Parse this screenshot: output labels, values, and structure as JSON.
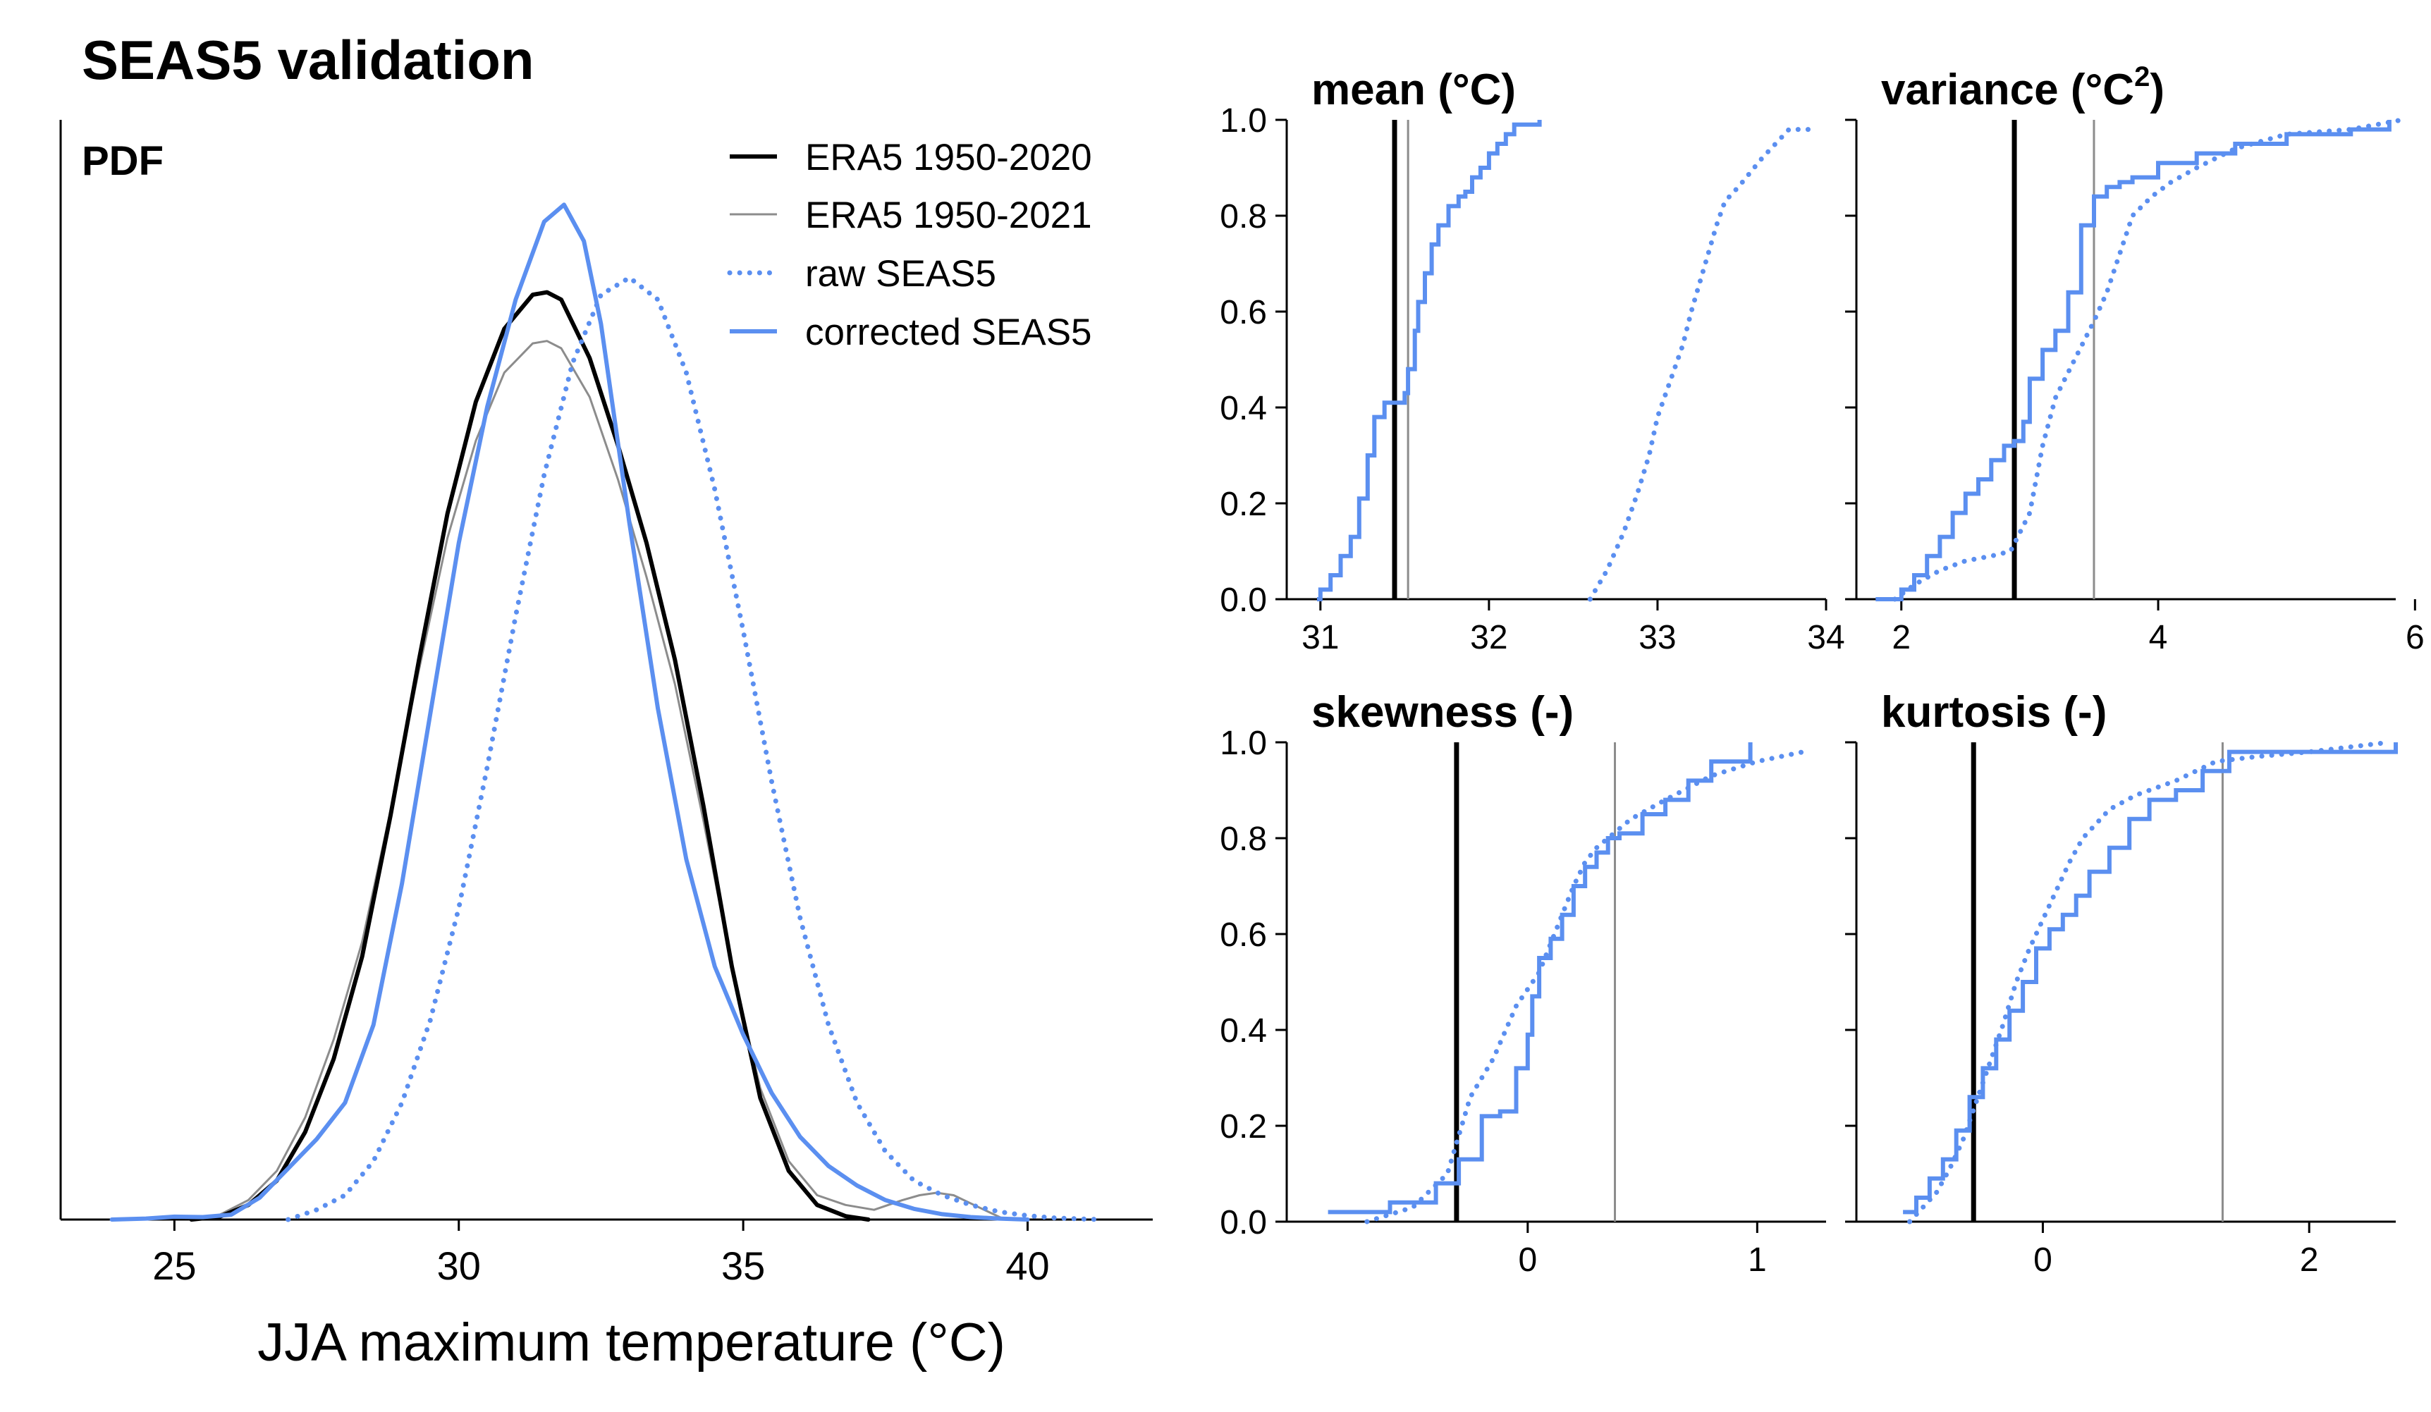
{
  "figure_title": "SEAS5 validation",
  "colors": {
    "era5": "#000000",
    "era5_long": "#8c8c8c",
    "seas5": "#5b8ff0"
  },
  "chart_data": [
    {
      "id": "pdf",
      "type": "line",
      "panel_label": "PDF",
      "xlabel": "JJA maximum temperature (°C)",
      "ylabel": "",
      "xlim": [
        23,
        42.2
      ],
      "ylim": [
        0,
        0.21
      ],
      "xticks": [
        25,
        30,
        35,
        40
      ],
      "xtick_labels": [
        "25",
        "30",
        "35",
        "40"
      ],
      "legend": {
        "position": "top-right",
        "entries": [
          {
            "label": "ERA5 1950-2020",
            "series": "era5_2020"
          },
          {
            "label": "ERA5 1950-2021",
            "series": "era5_2021"
          },
          {
            "label": "raw SEAS5",
            "series": "raw_seas5"
          },
          {
            "label": "corrected SEAS5",
            "series": "corrected_seas5"
          }
        ]
      },
      "series": [
        {
          "key": "era5_2020",
          "name": "ERA5 1950-2020",
          "color": "#000000",
          "style": "solid",
          "width": 6,
          "x": [
            25.3,
            25.8,
            26.3,
            26.8,
            27.3,
            27.8,
            28.3,
            28.8,
            29.3,
            29.8,
            30.3,
            30.8,
            31.3,
            31.55,
            31.8,
            32.3,
            32.8,
            33.3,
            33.8,
            34.3,
            34.8,
            35.3,
            35.8,
            36.3,
            36.8,
            37.2
          ],
          "y": [
            0,
            0.0006,
            0.003,
            0.008,
            0.018,
            0.033,
            0.054,
            0.083,
            0.115,
            0.145,
            0.168,
            0.183,
            0.19,
            0.1905,
            0.189,
            0.177,
            0.159,
            0.139,
            0.115,
            0.085,
            0.052,
            0.025,
            0.01,
            0.003,
            0.0007,
            0
          ]
        },
        {
          "key": "era5_2021",
          "name": "ERA5 1950-2021",
          "color": "#8c8c8c",
          "style": "solid",
          "width": 3,
          "x": [
            25.3,
            25.8,
            26.3,
            26.8,
            27.3,
            27.8,
            28.3,
            28.8,
            29.3,
            29.8,
            30.3,
            30.8,
            31.3,
            31.55,
            31.8,
            32.3,
            32.8,
            33.3,
            33.8,
            34.3,
            34.8,
            35.3,
            35.8,
            36.3,
            36.8,
            37.3,
            37.8,
            38.1,
            38.4,
            38.7,
            39.2,
            39.6
          ],
          "y": [
            0,
            0.001,
            0.004,
            0.01,
            0.021,
            0.037,
            0.057,
            0.084,
            0.113,
            0.14,
            0.16,
            0.174,
            0.18,
            0.1805,
            0.179,
            0.169,
            0.152,
            0.132,
            0.11,
            0.082,
            0.052,
            0.027,
            0.012,
            0.005,
            0.003,
            0.002,
            0.004,
            0.005,
            0.0055,
            0.005,
            0.0022,
            0
          ]
        },
        {
          "key": "raw_seas5",
          "name": "raw SEAS5",
          "color": "#5b8ff0",
          "style": "dotted",
          "width": 6,
          "x": [
            27.0,
            27.5,
            28.0,
            28.5,
            29.0,
            29.5,
            30.0,
            30.5,
            31.0,
            31.5,
            32.0,
            32.5,
            33.0,
            33.5,
            34.0,
            34.5,
            35.0,
            35.5,
            36.0,
            36.5,
            37.0,
            37.5,
            38.0,
            38.5,
            39.0,
            39.5,
            40.0,
            40.5,
            41.0,
            41.3
          ],
          "y": [
            0,
            0.002,
            0.005,
            0.012,
            0.024,
            0.041,
            0.064,
            0.093,
            0.124,
            0.153,
            0.176,
            0.19,
            0.1935,
            0.189,
            0.174,
            0.15,
            0.121,
            0.09,
            0.062,
            0.04,
            0.024,
            0.014,
            0.008,
            0.005,
            0.003,
            0.0016,
            0.0008,
            0.0003,
            0.0001,
            0
          ]
        },
        {
          "key": "corrected_seas5",
          "name": "corrected SEAS5",
          "color": "#5b8ff0",
          "style": "solid",
          "width": 6,
          "x": [
            23.9,
            24.5,
            25.0,
            25.5,
            26.0,
            26.5,
            27.0,
            27.5,
            28.0,
            28.5,
            29.0,
            29.5,
            30.0,
            30.5,
            31.0,
            31.5,
            31.85,
            32.2,
            32.5,
            33.0,
            33.5,
            34.0,
            34.5,
            35.0,
            35.5,
            36.0,
            36.5,
            37.0,
            37.5,
            38.0,
            38.5,
            39.0,
            39.5,
            40.0
          ],
          "y": [
            0,
            0.0002,
            0.0006,
            0.0005,
            0.001,
            0.0045,
            0.0105,
            0.0165,
            0.024,
            0.04,
            0.069,
            0.104,
            0.139,
            0.167,
            0.189,
            0.205,
            0.2085,
            0.201,
            0.184,
            0.143,
            0.105,
            0.074,
            0.052,
            0.038,
            0.026,
            0.017,
            0.011,
            0.007,
            0.004,
            0.0022,
            0.0011,
            0.0005,
            0.0002,
            0
          ]
        }
      ]
    },
    {
      "id": "mean",
      "type": "line",
      "title": "mean (°C)",
      "xlim": [
        30.8,
        34.0
      ],
      "ylim": [
        0,
        1
      ],
      "xticks": [
        31,
        32,
        33,
        34
      ],
      "xtick_labels": [
        "31",
        "32",
        "33",
        "34"
      ],
      "yticks": [
        0,
        0.2,
        0.4,
        0.6,
        0.8,
        1
      ],
      "ytick_labels": [
        "0.0",
        "0.2",
        "0.4",
        "0.6",
        "0.8",
        "1.0"
      ],
      "era5_2020": 31.44,
      "era5_2021": 31.52,
      "series": [
        {
          "key": "raw",
          "name": "raw SEAS5",
          "style": "dotted",
          "x": [
            32.6,
            32.7,
            32.8,
            32.88,
            32.95,
            33.0,
            33.08,
            33.15,
            33.2,
            33.25,
            33.3,
            33.35,
            33.4,
            33.48,
            33.55,
            33.62,
            33.7,
            33.78,
            33.9
          ],
          "y": [
            0,
            0.06,
            0.14,
            0.22,
            0.3,
            0.38,
            0.46,
            0.53,
            0.6,
            0.66,
            0.72,
            0.78,
            0.83,
            0.86,
            0.89,
            0.92,
            0.95,
            0.98,
            0.98
          ]
        },
        {
          "key": "corrected",
          "name": "corrected SEAS5",
          "style": "step",
          "x": [
            30.98,
            31.0,
            31.06,
            31.12,
            31.18,
            31.23,
            31.28,
            31.32,
            31.38,
            31.44,
            31.5,
            31.52,
            31.56,
            31.58,
            31.62,
            31.66,
            31.7,
            31.76,
            31.82,
            31.86,
            31.9,
            31.95,
            32.0,
            32.05,
            32.1,
            32.15,
            32.22,
            32.3
          ],
          "y": [
            0,
            0.02,
            0.05,
            0.09,
            0.13,
            0.21,
            0.3,
            0.38,
            0.41,
            0.41,
            0.43,
            0.48,
            0.56,
            0.62,
            0.68,
            0.74,
            0.78,
            0.82,
            0.84,
            0.85,
            0.88,
            0.9,
            0.93,
            0.95,
            0.97,
            0.99,
            0.99,
            1.0
          ]
        }
      ]
    },
    {
      "id": "variance",
      "type": "line",
      "title": "variance (°C",
      "title_sup": "2",
      "title_close": ")",
      "xlim": [
        1.65,
        5.85
      ],
      "ylim": [
        0,
        1
      ],
      "xticks": [
        2,
        4,
        6
      ],
      "xtick_labels": [
        "2",
        "4",
        "6"
      ],
      "yticks": [
        0,
        0.2,
        0.4,
        0.6,
        0.8,
        1
      ],
      "era5_2020": 2.88,
      "era5_2021": 3.5,
      "series": [
        {
          "key": "raw",
          "name": "raw SEAS5",
          "style": "dotted",
          "x": [
            1.95,
            2.1,
            2.3,
            2.5,
            2.7,
            2.85,
            3.0,
            3.1,
            3.2,
            3.35,
            3.5,
            3.6,
            3.7,
            3.8,
            3.95,
            4.1,
            4.3,
            4.6,
            5.0,
            5.5,
            5.9
          ],
          "y": [
            0,
            0.03,
            0.06,
            0.08,
            0.09,
            0.1,
            0.18,
            0.32,
            0.42,
            0.5,
            0.58,
            0.64,
            0.72,
            0.8,
            0.84,
            0.87,
            0.9,
            0.94,
            0.97,
            0.98,
            1.0
          ]
        },
        {
          "key": "corrected",
          "name": "corrected SEAS5",
          "style": "step",
          "x": [
            1.8,
            2.0,
            2.1,
            2.2,
            2.3,
            2.4,
            2.5,
            2.6,
            2.7,
            2.8,
            2.88,
            2.95,
            3.0,
            3.1,
            3.2,
            3.3,
            3.4,
            3.5,
            3.6,
            3.7,
            3.8,
            4.0,
            4.3,
            4.6,
            5.0,
            5.5,
            5.8
          ],
          "y": [
            0,
            0.02,
            0.05,
            0.09,
            0.13,
            0.18,
            0.22,
            0.25,
            0.29,
            0.32,
            0.33,
            0.37,
            0.46,
            0.52,
            0.56,
            0.64,
            0.78,
            0.84,
            0.86,
            0.87,
            0.88,
            0.91,
            0.93,
            0.95,
            0.97,
            0.98,
            1.0
          ]
        }
      ]
    },
    {
      "id": "skewness",
      "type": "line",
      "title": "skewness (-)",
      "xlim": [
        -1.05,
        1.3
      ],
      "ylim": [
        0,
        1
      ],
      "xticks": [
        0,
        1
      ],
      "xtick_labels": [
        "0",
        "1"
      ],
      "yticks": [
        0,
        0.2,
        0.4,
        0.6,
        0.8,
        1
      ],
      "ytick_labels": [
        "0.0",
        "0.2",
        "0.4",
        "0.6",
        "0.8",
        "1.0"
      ],
      "era5_2020": -0.31,
      "era5_2021": 0.38,
      "series": [
        {
          "key": "raw",
          "name": "raw SEAS5",
          "style": "dotted",
          "x": [
            -0.7,
            -0.5,
            -0.35,
            -0.25,
            -0.15,
            -0.05,
            0.05,
            0.1,
            0.15,
            0.2,
            0.25,
            0.3,
            0.35,
            0.45,
            0.6,
            0.8,
            1.0,
            1.2
          ],
          "y": [
            0,
            0.03,
            0.1,
            0.26,
            0.34,
            0.45,
            0.52,
            0.58,
            0.64,
            0.7,
            0.75,
            0.78,
            0.8,
            0.84,
            0.88,
            0.93,
            0.96,
            0.98
          ]
        },
        {
          "key": "corrected",
          "name": "corrected SEAS5",
          "style": "step",
          "x": [
            -0.87,
            -0.6,
            -0.4,
            -0.3,
            -0.2,
            -0.12,
            -0.05,
            0.0,
            0.02,
            0.05,
            0.1,
            0.15,
            0.2,
            0.25,
            0.3,
            0.35,
            0.4,
            0.5,
            0.6,
            0.7,
            0.8,
            0.97
          ],
          "y": [
            0.02,
            0.04,
            0.08,
            0.13,
            0.22,
            0.23,
            0.32,
            0.39,
            0.47,
            0.55,
            0.59,
            0.64,
            0.7,
            0.74,
            0.77,
            0.8,
            0.81,
            0.85,
            0.88,
            0.92,
            0.96,
            1.0
          ]
        }
      ]
    },
    {
      "id": "kurtosis",
      "type": "line",
      "title": "kurtosis (-)",
      "xlim": [
        -1.4,
        2.65
      ],
      "ylim": [
        0,
        1
      ],
      "xticks": [
        0,
        2
      ],
      "xtick_labels": [
        "0",
        "2"
      ],
      "yticks": [
        0,
        0.2,
        0.4,
        0.6,
        0.8,
        1
      ],
      "era5_2020": -0.52,
      "era5_2021": 1.35,
      "series": [
        {
          "key": "raw",
          "name": "raw SEAS5",
          "style": "dotted",
          "x": [
            -1.0,
            -0.9,
            -0.8,
            -0.7,
            -0.6,
            -0.5,
            -0.4,
            -0.3,
            -0.2,
            -0.1,
            0.0,
            0.1,
            0.2,
            0.3,
            0.5,
            0.7,
            1.0,
            1.3,
            1.6,
            2.0,
            2.6
          ],
          "y": [
            0,
            0.03,
            0.06,
            0.11,
            0.17,
            0.25,
            0.33,
            0.41,
            0.5,
            0.57,
            0.63,
            0.69,
            0.75,
            0.8,
            0.86,
            0.89,
            0.92,
            0.96,
            0.97,
            0.98,
            1.0
          ]
        },
        {
          "key": "corrected",
          "name": "corrected SEAS5",
          "style": "step",
          "x": [
            -1.05,
            -0.95,
            -0.85,
            -0.75,
            -0.65,
            -0.55,
            -0.45,
            -0.35,
            -0.25,
            -0.15,
            -0.05,
            0.05,
            0.15,
            0.25,
            0.35,
            0.5,
            0.65,
            0.8,
            1.0,
            1.2,
            1.4,
            2.0,
            2.65
          ],
          "y": [
            0.02,
            0.05,
            0.09,
            0.13,
            0.19,
            0.26,
            0.32,
            0.38,
            0.44,
            0.5,
            0.57,
            0.61,
            0.64,
            0.68,
            0.73,
            0.78,
            0.84,
            0.88,
            0.9,
            0.94,
            0.98,
            0.98,
            1.0
          ]
        }
      ]
    }
  ]
}
